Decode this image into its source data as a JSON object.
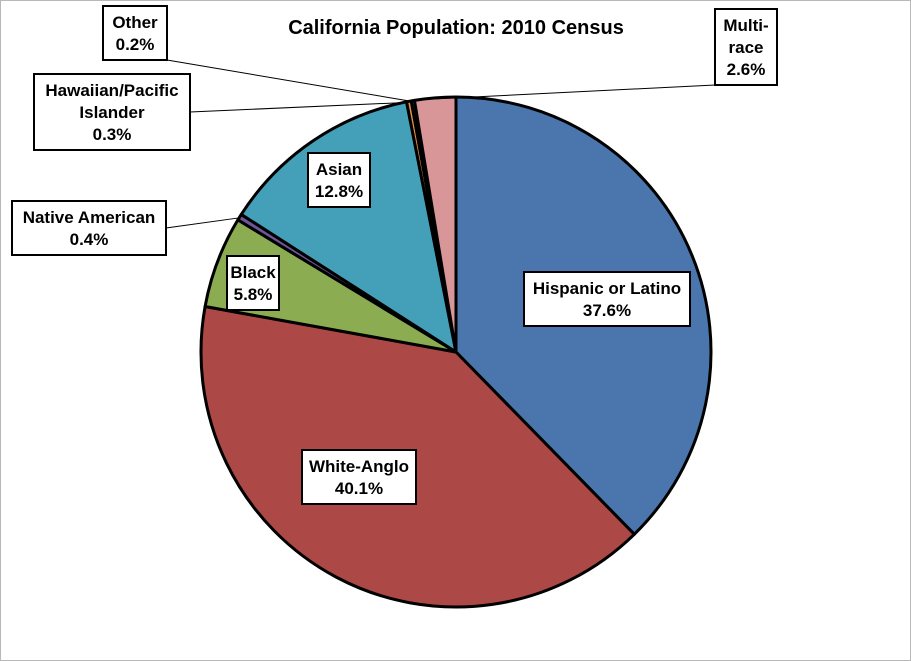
{
  "chart_data": {
    "type": "pie",
    "title": "California Population: 2010 Census",
    "series": [
      {
        "label": "Hispanic or Latino",
        "value_text": "37.6%",
        "value": 37.6,
        "color": "#4a76ad"
      },
      {
        "label": "White-Anglo",
        "value_text": "40.1%",
        "value": 40.1,
        "color": "#ac4846"
      },
      {
        "label": "Black",
        "value_text": "5.8%",
        "value": 5.8,
        "color": "#8cac52"
      },
      {
        "label": "Native American",
        "value_text": "0.4%",
        "value": 0.4,
        "color": "#6d5598"
      },
      {
        "label": "Asian",
        "value_text": "12.8%",
        "value": 12.8,
        "color": "#44a0b8"
      },
      {
        "label": "Hawaiian/Pacific Islander",
        "value_text": "0.3%",
        "value": 0.3,
        "color": "#e58f40"
      },
      {
        "label": "Other",
        "value_text": "0.2%",
        "value": 0.2,
        "color": "#7f98c4"
      },
      {
        "label": "Multi-race",
        "value_text": "2.6%",
        "value": 2.6,
        "color": "#d89698"
      }
    ]
  }
}
